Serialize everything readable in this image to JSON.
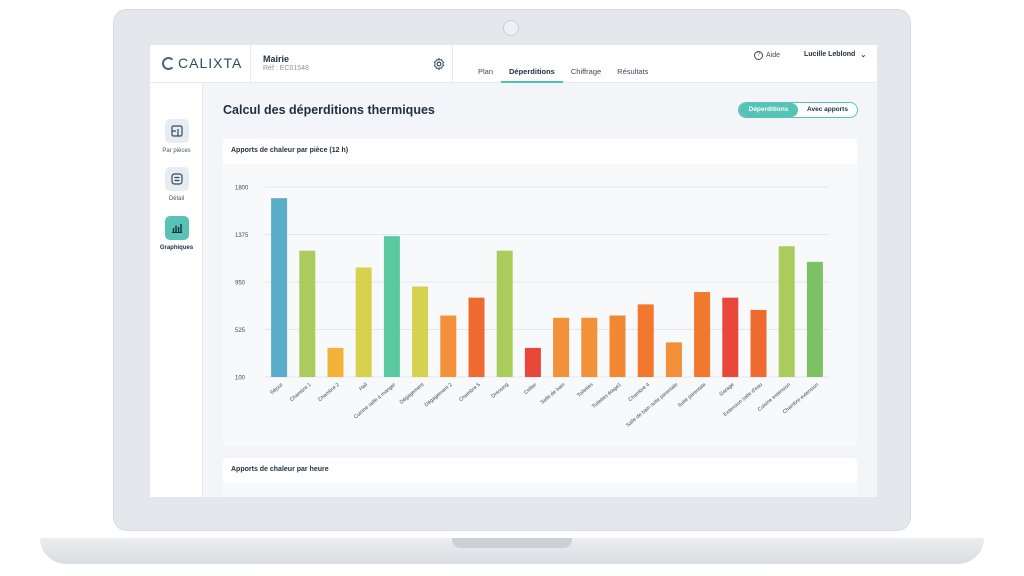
{
  "header": {
    "logo_text": "CALIXTA",
    "project_name": "Mairie",
    "project_ref": "Réf : EC01548",
    "tabs": [
      {
        "label": "Plan",
        "active": false
      },
      {
        "label": "Déperditions",
        "active": true
      },
      {
        "label": "Chiffrage",
        "active": false
      },
      {
        "label": "Résultats",
        "active": false
      }
    ],
    "help_label": "Aide",
    "user_name": "Lucille Leblond"
  },
  "sidebar": {
    "items": [
      {
        "label": "Par pièces",
        "icon": "layout-icon",
        "active": false
      },
      {
        "label": "Détail",
        "icon": "detail-list-icon",
        "active": false
      },
      {
        "label": "Graphiques",
        "icon": "bar-chart-icon",
        "active": true
      }
    ]
  },
  "main": {
    "title": "Calcul des déperditions thermiques",
    "toggle": {
      "option_a": "Déperditions",
      "option_b": "Avec apports",
      "selected": "Déperditions"
    },
    "card1_title": "Apports de chaleur par pièce (12 h)",
    "card2_title": "Apports de chaleur par heure"
  },
  "chart_data": {
    "type": "bar",
    "title": "Apports de chaleur par pièce (12 h)",
    "xlabel": "",
    "ylabel": "",
    "ylim": [
      100,
      1800
    ],
    "yticks": [
      100,
      525,
      950,
      1375,
      1800
    ],
    "grid": true,
    "categories": [
      "Séjour",
      "Chambre 1",
      "Chambre 2",
      "Hall",
      "Cuisine salle à manger",
      "Dégagement",
      "Dégagement 2",
      "Chambre 5",
      "Dressing",
      "Cellier",
      "Salle de bain",
      "Toilettes",
      "Toilettes étage1",
      "Chambre 4",
      "Salle de bain suite parentale",
      "Suite parentale",
      "Garage",
      "Extension salle d'eau",
      "Cuisine extension",
      "Chambre extension"
    ],
    "values": [
      1700,
      1230,
      360,
      1080,
      1360,
      910,
      650,
      810,
      1230,
      360,
      630,
      630,
      650,
      750,
      410,
      860,
      810,
      700,
      1270,
      1130
    ],
    "colors": [
      "#5aacc8",
      "#a9cc5c",
      "#f2b33b",
      "#d6d250",
      "#58c9a0",
      "#d6d250",
      "#f2913a",
      "#ef6a2e",
      "#a9cc5c",
      "#e8473a",
      "#f2913a",
      "#f2913a",
      "#f28833",
      "#f2782e",
      "#f2913a",
      "#f2782e",
      "#e8473a",
      "#ef6a2e",
      "#a9cc5c",
      "#7dc165"
    ]
  }
}
